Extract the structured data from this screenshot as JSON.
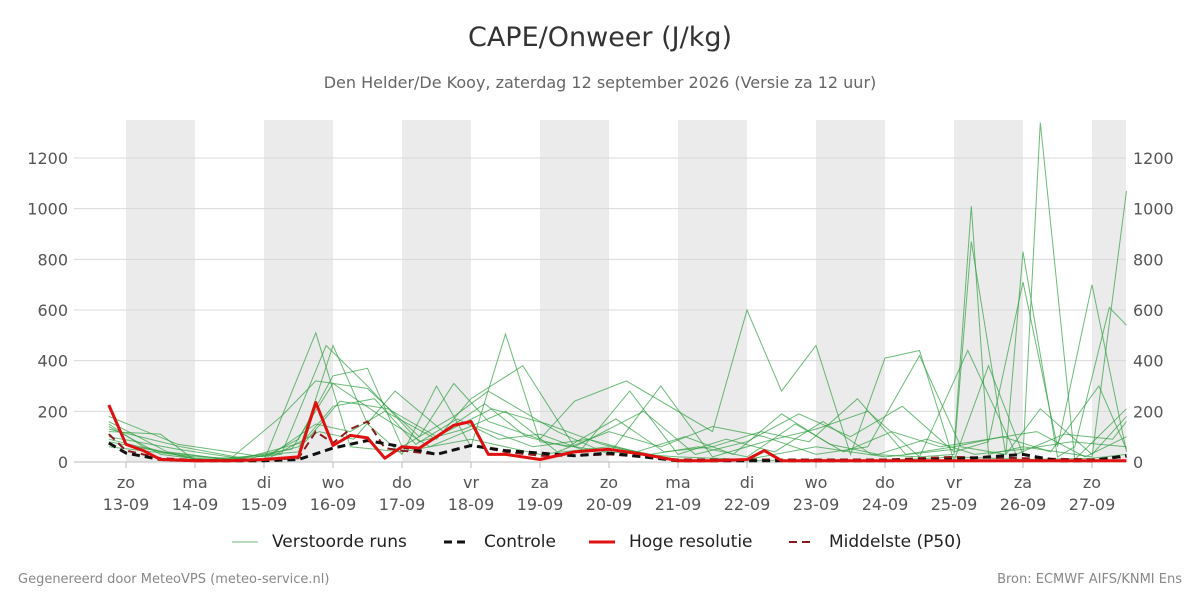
{
  "title": "CAPE/Onweer (J/kg)",
  "subtitle": "Den Helder/De Kooy, zaterdag 12 september 2026 (Versie za 12 uur)",
  "footer": {
    "left": "Gegenereerd door MeteoVPS (meteo-service.nl)",
    "right": "Bron: ECMWF AIFS/KNMI Ens"
  },
  "colors": {
    "perturbed": "#2e9e3e",
    "control": "#111111",
    "hires": "#e01010",
    "median": "#8b1a1a",
    "night_band": "#ebebeb",
    "grid": "#d9d9d9"
  },
  "chart_data": {
    "type": "line",
    "x_unit": "day offset from 2026-09-13 00:00",
    "xlim": [
      -0.25,
      14.5
    ],
    "ylim": [
      0,
      1350
    ],
    "yticks": [
      0,
      200,
      400,
      600,
      800,
      1000,
      1200
    ],
    "grid": "horizontal",
    "legend_position": "bottom",
    "x_day_labels": [
      {
        "day": "zo",
        "date": "13-09"
      },
      {
        "day": "ma",
        "date": "14-09"
      },
      {
        "day": "di",
        "date": "15-09"
      },
      {
        "day": "wo",
        "date": "16-09"
      },
      {
        "day": "do",
        "date": "17-09"
      },
      {
        "day": "vr",
        "date": "18-09"
      },
      {
        "day": "za",
        "date": "19-09"
      },
      {
        "day": "zo",
        "date": "20-09"
      },
      {
        "day": "ma",
        "date": "21-09"
      },
      {
        "day": "di",
        "date": "22-09"
      },
      {
        "day": "wo",
        "date": "23-09"
      },
      {
        "day": "do",
        "date": "24-09"
      },
      {
        "day": "vr",
        "date": "25-09"
      },
      {
        "day": "za",
        "date": "26-09"
      },
      {
        "day": "zo",
        "date": "27-09"
      }
    ],
    "weekend_bands_note": "shaded day bands",
    "shaded_days": [
      0,
      2,
      4,
      6,
      8,
      10,
      12,
      14
    ],
    "legend": [
      {
        "key": "perturbed",
        "label": "Verstoorde runs"
      },
      {
        "key": "control",
        "label": "Controle"
      },
      {
        "key": "hires",
        "label": "Hoge resolutie"
      },
      {
        "key": "median",
        "label": "Middelste (P50)"
      }
    ],
    "series": {
      "hires": {
        "name": "Hoge resolutie",
        "x": [
          -0.25,
          0,
          0.25,
          0.5,
          1,
          1.5,
          2,
          2.5,
          2.75,
          3,
          3.25,
          3.5,
          3.75,
          4,
          4.25,
          4.5,
          4.75,
          5,
          5.25,
          5.5,
          6,
          6.5,
          7,
          7.5,
          8,
          8.5,
          9,
          9.25,
          9.5,
          10,
          11,
          12,
          13,
          14,
          14.5
        ],
        "values": [
          225,
          70,
          45,
          10,
          5,
          5,
          10,
          20,
          235,
          65,
          105,
          95,
          15,
          60,
          55,
          100,
          145,
          160,
          30,
          30,
          10,
          40,
          50,
          30,
          5,
          5,
          10,
          45,
          5,
          5,
          5,
          5,
          5,
          5,
          5
        ]
      },
      "control": {
        "name": "Controle",
        "x": [
          -0.25,
          0,
          0.5,
          1,
          1.5,
          2,
          2.5,
          3,
          3.5,
          4,
          4.5,
          5,
          5.5,
          6,
          6.5,
          7,
          7.5,
          8,
          9,
          10,
          11,
          12,
          12.5,
          13,
          13.5,
          14,
          14.5
        ],
        "values": [
          75,
          35,
          10,
          5,
          5,
          5,
          10,
          55,
          85,
          60,
          30,
          65,
          45,
          35,
          25,
          35,
          20,
          5,
          5,
          5,
          5,
          10,
          20,
          30,
          5,
          5,
          25
        ]
      },
      "median": {
        "name": "Middelste (P50)",
        "x": [
          -0.25,
          0,
          0.5,
          1,
          1.5,
          2,
          2.5,
          2.75,
          3,
          3.25,
          3.5,
          3.75,
          4,
          4.5,
          5,
          5.5,
          6,
          6.5,
          7,
          7.5,
          8,
          9,
          10,
          11,
          12,
          13,
          14,
          14.5
        ],
        "values": [
          110,
          45,
          15,
          8,
          6,
          8,
          15,
          120,
          75,
          130,
          160,
          55,
          45,
          30,
          65,
          40,
          25,
          25,
          30,
          20,
          10,
          10,
          10,
          10,
          20,
          15,
          10,
          20
        ]
      },
      "perturbed": [
        {
          "x": [
            -0.25,
            0.25,
            1,
            2,
            2.75,
            3.25,
            4,
            5,
            6,
            7,
            8,
            9,
            10,
            11,
            12,
            13,
            14,
            14.5
          ],
          "values": [
            150,
            60,
            10,
            5,
            510,
            60,
            40,
            90,
            30,
            60,
            10,
            5,
            10,
            5,
            20,
            10,
            15,
            30
          ]
        },
        {
          "x": [
            -0.25,
            0.5,
            1,
            2.5,
            3,
            3.5,
            4,
            4.5,
            5,
            5.5,
            6,
            7,
            8,
            9,
            10,
            11,
            12,
            12.25,
            12.5,
            13,
            14,
            14.5
          ],
          "values": [
            120,
            110,
            5,
            40,
            460,
            150,
            30,
            300,
            60,
            505,
            80,
            40,
            20,
            10,
            60,
            20,
            50,
            1010,
            30,
            60,
            20,
            1070
          ]
        },
        {
          "x": [
            -0.25,
            0.5,
            1.5,
            2.25,
            2.75,
            3.5,
            4.25,
            4.75,
            5.25,
            6,
            6.5,
            7.25,
            8.5,
            9,
            9.5,
            10,
            10.5,
            11,
            11.5,
            12,
            12.5,
            13,
            13.25,
            13.75,
            14.5
          ],
          "values": [
            90,
            40,
            10,
            180,
            320,
            290,
            100,
            310,
            160,
            90,
            240,
            320,
            120,
            600,
            280,
            460,
            30,
            410,
            440,
            5,
            380,
            30,
            1340,
            10,
            210
          ]
        },
        {
          "x": [
            -0.25,
            0.75,
            2,
            2.5,
            3,
            3.5,
            4,
            4.75,
            5.25,
            6.25,
            7,
            7.75,
            8.5,
            9.25,
            10,
            10.75,
            11.5,
            12,
            12.25,
            12.75,
            13,
            13.5,
            13.75,
            14.25,
            14.5
          ],
          "values": [
            180,
            70,
            20,
            90,
            340,
            370,
            60,
            180,
            280,
            120,
            30,
            300,
            20,
            80,
            130,
            200,
            20,
            30,
            870,
            30,
            830,
            20,
            60,
            610,
            540
          ]
        },
        {
          "x": [
            -0.25,
            1,
            2,
            2.75,
            3.25,
            3.75,
            4.5,
            5,
            5.75,
            6.5,
            7.5,
            8.25,
            9,
            9.75,
            10.5,
            11.25,
            12,
            12.5,
            13,
            13.5,
            14,
            14.5
          ],
          "values": [
            60,
            20,
            10,
            150,
            120,
            200,
            90,
            250,
            380,
            60,
            200,
            30,
            80,
            190,
            100,
            220,
            40,
            80,
            710,
            60,
            700,
            40
          ]
        },
        {
          "x": [
            -0.25,
            0.5,
            1.25,
            2.25,
            2.9,
            3.5,
            4.25,
            4.9,
            5.5,
            6.25,
            7,
            7.75,
            8.5,
            9.25,
            10,
            10.75,
            11.5,
            12.1,
            12.75,
            13.25,
            14,
            14.5
          ],
          "values": [
            140,
            30,
            5,
            30,
            460,
            300,
            80,
            130,
            200,
            40,
            120,
            60,
            140,
            100,
            30,
            60,
            420,
            60,
            30,
            210,
            30,
            180
          ]
        },
        {
          "x": [
            -0.25,
            0.75,
            1.75,
            2.5,
            3,
            3.6,
            4.2,
            4.8,
            5.4,
            6,
            6.6,
            7.3,
            8,
            8.7,
            9.4,
            10.1,
            10.8,
            11.5,
            12.2,
            12.9,
            13.6,
            14.3,
            14.5
          ],
          "values": [
            100,
            50,
            10,
            60,
            220,
            250,
            70,
            170,
            90,
            110,
            50,
            280,
            30,
            90,
            40,
            160,
            30,
            20,
            440,
            30,
            110,
            90,
            160
          ]
        },
        {
          "x": [
            -0.25,
            1,
            2,
            2.8,
            3.3,
            3.9,
            4.6,
            5.2,
            5.8,
            6.4,
            7.1,
            7.8,
            8.5,
            9.2,
            9.9,
            10.6,
            11.3,
            12,
            12.7,
            13.4,
            14.1,
            14.5
          ],
          "values": [
            80,
            15,
            5,
            120,
            90,
            280,
            120,
            230,
            100,
            60,
            170,
            40,
            60,
            120,
            80,
            250,
            30,
            60,
            100,
            40,
            300,
            50
          ]
        },
        {
          "x": [
            -0.25,
            0.6,
            1.5,
            2.4,
            3,
            3.7,
            4.4,
            5.1,
            5.9,
            6.7,
            7.4,
            8.1,
            8.8,
            9.5,
            10.2,
            10.9,
            11.6,
            12.3,
            13,
            13.7,
            14.5
          ],
          "values": [
            160,
            40,
            10,
            50,
            310,
            180,
            60,
            140,
            60,
            90,
            40,
            100,
            30,
            190,
            70,
            30,
            90,
            30,
            50,
            80,
            60
          ]
        },
        {
          "x": [
            -0.25,
            0.8,
            1.7,
            2.6,
            3.1,
            3.8,
            4.5,
            5.3,
            6.1,
            6.9,
            7.6,
            8.3,
            9,
            9.7,
            10.4,
            11.1,
            11.8,
            12.5,
            13.2,
            13.9,
            14.5
          ],
          "values": [
            130,
            60,
            15,
            80,
            240,
            210,
            100,
            210,
            150,
            70,
            30,
            60,
            20,
            150,
            40,
            120,
            60,
            90,
            120,
            20,
            100
          ]
        }
      ]
    }
  }
}
